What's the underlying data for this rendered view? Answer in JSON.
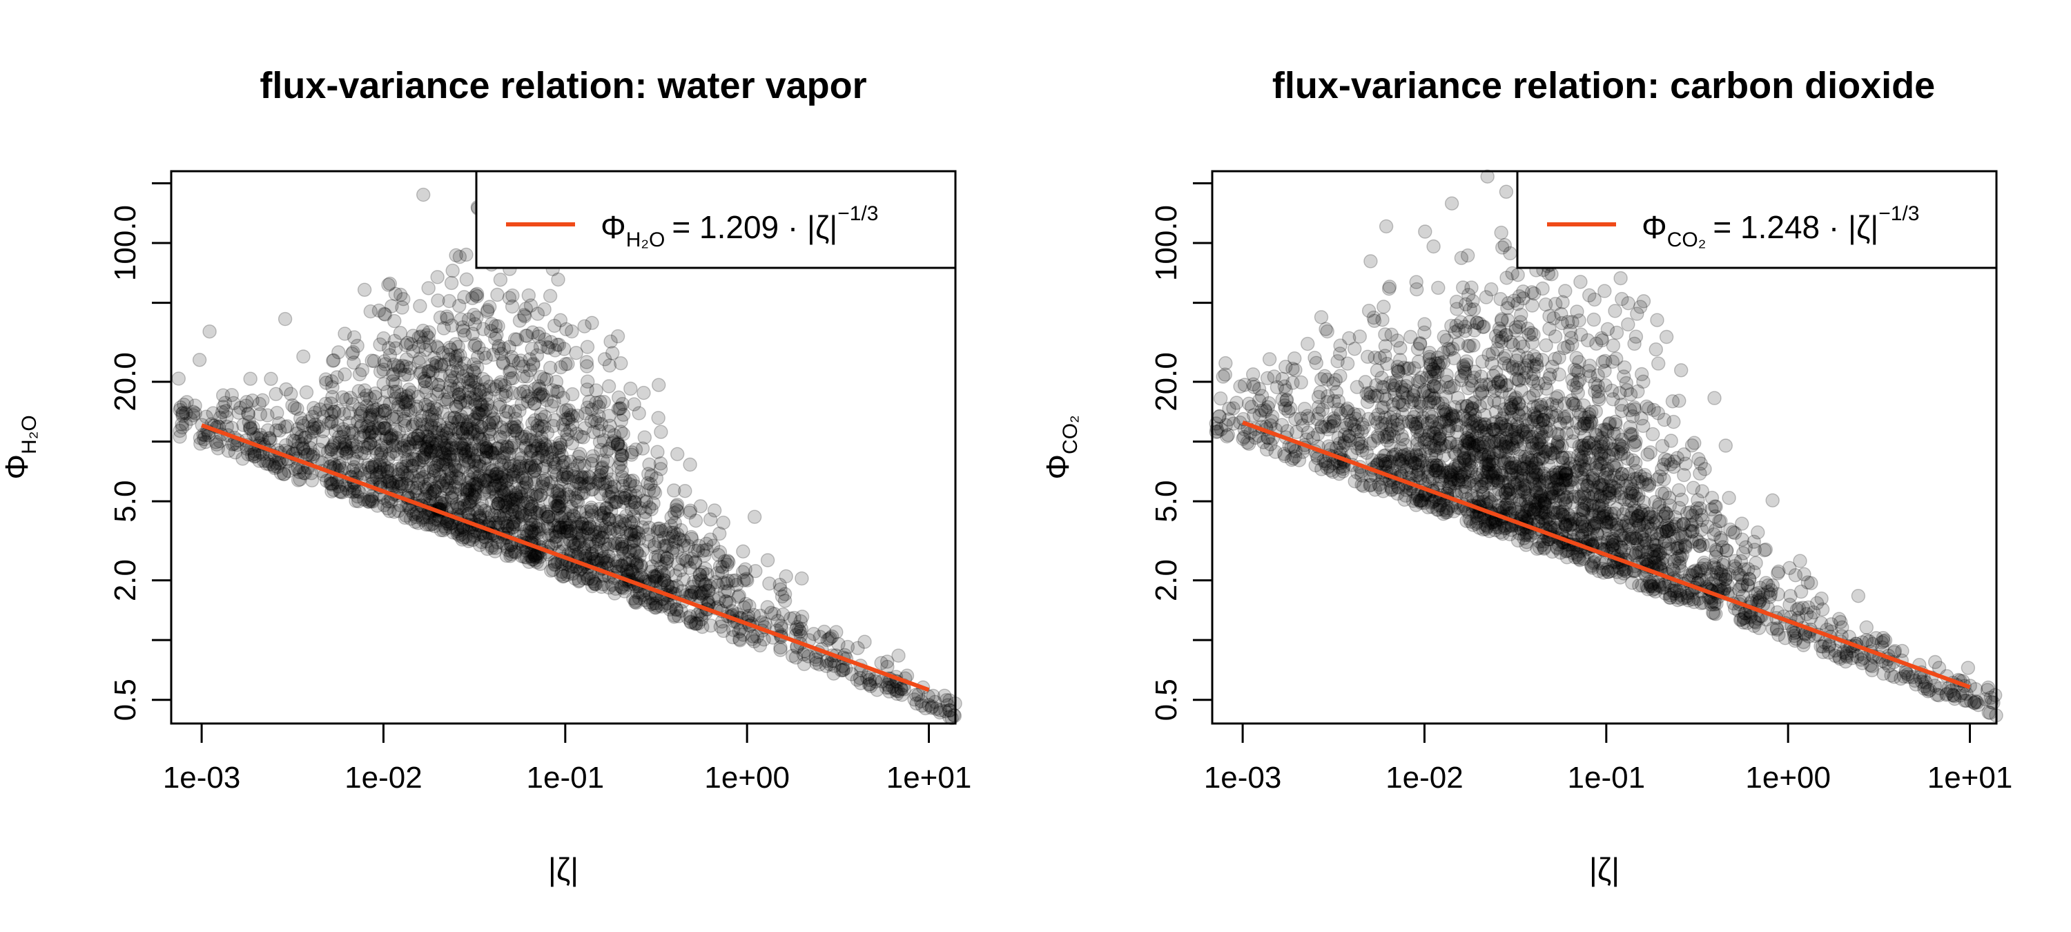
{
  "chart_data": [
    {
      "type": "scatter",
      "title": "flux-variance relation: water vapor",
      "xlabel": "|ζ|",
      "ylabel": {
        "symbol": "Φ",
        "subscript": "H₂O"
      },
      "xscale": "log",
      "yscale": "log",
      "xlim": [
        0.00068,
        14
      ],
      "ylim": [
        0.38,
        230
      ],
      "x_ticks": [
        {
          "value": 0.001,
          "label": "1e-03"
        },
        {
          "value": 0.01,
          "label": "1e-02"
        },
        {
          "value": 0.1,
          "label": "1e-01"
        },
        {
          "value": 1,
          "label": "1e+00"
        },
        {
          "value": 10,
          "label": "1e+01"
        }
      ],
      "y_ticks": [
        0.5,
        1,
        2,
        5,
        10,
        20,
        50,
        100,
        200
      ],
      "y_tick_labels": [
        {
          "value": 0.5,
          "label": "0.5"
        },
        {
          "value": 2,
          "label": "2.0"
        },
        {
          "value": 5,
          "label": "5.0"
        },
        {
          "value": 20,
          "label": "20.0"
        },
        {
          "value": 100,
          "label": "100.0"
        }
      ],
      "fit": {
        "coefficient": 1.209,
        "exponent": -0.3333,
        "x_range": [
          0.001,
          10
        ],
        "color": "#f04a18",
        "legend": {
          "lhs": "Φ",
          "sub": "H₂O",
          "rhs": "= 1.209 · |ζ|",
          "exp": "−1/3"
        }
      },
      "point_color": "#000000",
      "point_opacity": 0.17,
      "n_points": 2600,
      "density": {
        "peak_x": 0.05,
        "ceiling_at_peak": 160
      },
      "legend_position": "top-right"
    },
    {
      "type": "scatter",
      "title": "flux-variance relation: carbon dioxide",
      "xlabel": "|ζ|",
      "ylabel": {
        "symbol": "Φ",
        "subscript": "CO₂"
      },
      "xscale": "log",
      "yscale": "log",
      "xlim": [
        0.00068,
        14
      ],
      "ylim": [
        0.38,
        230
      ],
      "x_ticks": [
        {
          "value": 0.001,
          "label": "1e-03"
        },
        {
          "value": 0.01,
          "label": "1e-02"
        },
        {
          "value": 0.1,
          "label": "1e-01"
        },
        {
          "value": 1,
          "label": "1e+00"
        },
        {
          "value": 10,
          "label": "1e+01"
        }
      ],
      "y_ticks": [
        0.5,
        1,
        2,
        5,
        10,
        20,
        50,
        100,
        200
      ],
      "y_tick_labels": [
        {
          "value": 0.5,
          "label": "0.5"
        },
        {
          "value": 2,
          "label": "2.0"
        },
        {
          "value": 5,
          "label": "5.0"
        },
        {
          "value": 20,
          "label": "20.0"
        },
        {
          "value": 100,
          "label": "100.0"
        }
      ],
      "fit": {
        "coefficient": 1.248,
        "exponent": -0.3333,
        "x_range": [
          0.001,
          10
        ],
        "color": "#f04a18",
        "legend": {
          "lhs": "Φ",
          "sub": "CO₂",
          "rhs": "= 1.248 · |ζ|",
          "exp": "−1/3"
        }
      },
      "point_color": "#000000",
      "point_opacity": 0.17,
      "n_points": 2600,
      "density": {
        "peak_x": 0.04,
        "ceiling_at_peak": 160
      },
      "legend_position": "top-right"
    }
  ]
}
